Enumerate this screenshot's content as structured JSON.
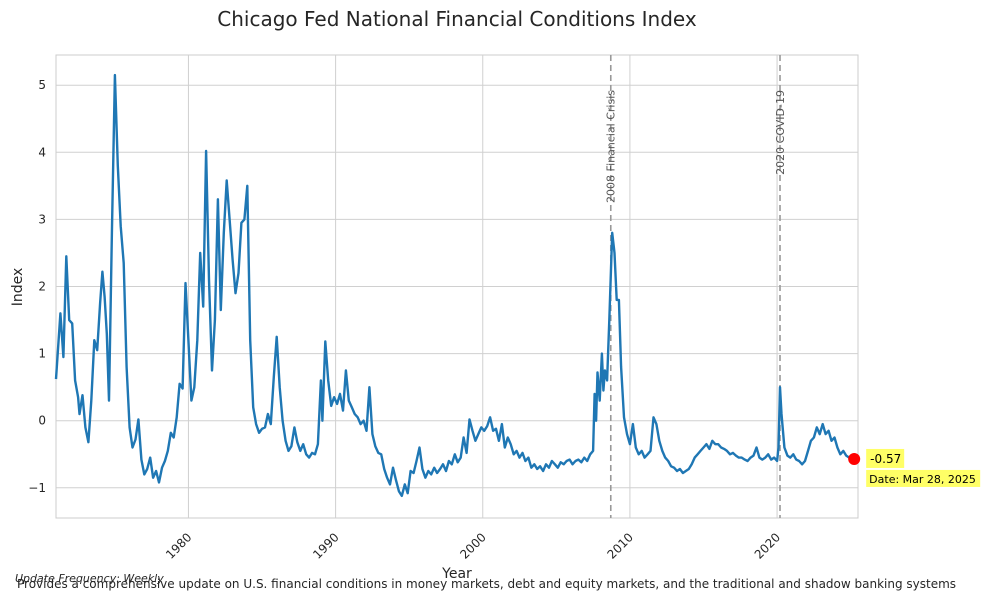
{
  "chart_data": {
    "type": "line",
    "title": "Chicago Fed National Financial Conditions Index",
    "xlabel": "Year",
    "ylabel": "Index",
    "xlim": [
      1971.0,
      2025.5
    ],
    "ylim": [
      -1.45,
      5.45
    ],
    "x_ticks": [
      1980,
      1990,
      2000,
      2010,
      2020
    ],
    "y_ticks": [
      -1,
      0,
      1,
      2,
      3,
      4,
      5
    ],
    "y_tick_labels": [
      "−1",
      "0",
      "1",
      "2",
      "3",
      "4",
      "5"
    ],
    "grid": true,
    "line_color": "#1f77b4",
    "events": [
      {
        "x": 2008.7,
        "label": "2008 Financial Crisis"
      },
      {
        "x": 2020.2,
        "label": "2020 COVID-19"
      }
    ],
    "latest": {
      "x": 2025.24,
      "y": -0.57,
      "value_label": "-0.57",
      "date_label": "Date: Mar 28, 2025",
      "marker_color": "#ff0000",
      "box_color": "#ffff66"
    },
    "series": [
      {
        "points": [
          [
            1971.0,
            0.62
          ],
          [
            1971.3,
            1.6
          ],
          [
            1971.5,
            0.95
          ],
          [
            1971.7,
            2.45
          ],
          [
            1971.9,
            1.5
          ],
          [
            1972.1,
            1.45
          ],
          [
            1972.3,
            0.6
          ],
          [
            1972.5,
            0.35
          ],
          [
            1972.6,
            0.1
          ],
          [
            1972.8,
            0.38
          ],
          [
            1973.0,
            -0.1
          ],
          [
            1973.2,
            -0.32
          ],
          [
            1973.4,
            0.3
          ],
          [
            1973.6,
            1.2
          ],
          [
            1973.8,
            1.05
          ],
          [
            1974.0,
            1.75
          ],
          [
            1974.15,
            2.22
          ],
          [
            1974.3,
            1.85
          ],
          [
            1974.45,
            1.3
          ],
          [
            1974.6,
            0.3
          ],
          [
            1974.8,
            2.8
          ],
          [
            1975.0,
            5.15
          ],
          [
            1975.2,
            3.8
          ],
          [
            1975.4,
            2.9
          ],
          [
            1975.6,
            2.35
          ],
          [
            1975.8,
            0.8
          ],
          [
            1976.0,
            -0.1
          ],
          [
            1976.2,
            -0.4
          ],
          [
            1976.4,
            -0.28
          ],
          [
            1976.6,
            0.02
          ],
          [
            1976.8,
            -0.58
          ],
          [
            1977.0,
            -0.8
          ],
          [
            1977.2,
            -0.72
          ],
          [
            1977.4,
            -0.55
          ],
          [
            1977.6,
            -0.85
          ],
          [
            1977.8,
            -0.75
          ],
          [
            1978.0,
            -0.92
          ],
          [
            1978.2,
            -0.7
          ],
          [
            1978.4,
            -0.6
          ],
          [
            1978.6,
            -0.45
          ],
          [
            1978.8,
            -0.18
          ],
          [
            1979.0,
            -0.25
          ],
          [
            1979.2,
            0.05
          ],
          [
            1979.4,
            0.55
          ],
          [
            1979.6,
            0.48
          ],
          [
            1979.8,
            2.05
          ],
          [
            1980.0,
            1.2
          ],
          [
            1980.2,
            0.3
          ],
          [
            1980.4,
            0.5
          ],
          [
            1980.6,
            1.2
          ],
          [
            1980.8,
            2.5
          ],
          [
            1981.0,
            1.7
          ],
          [
            1981.2,
            4.02
          ],
          [
            1981.4,
            2.1
          ],
          [
            1981.6,
            0.75
          ],
          [
            1981.8,
            1.5
          ],
          [
            1982.0,
            3.3
          ],
          [
            1982.2,
            1.65
          ],
          [
            1982.4,
            2.8
          ],
          [
            1982.6,
            3.58
          ],
          [
            1982.8,
            3.0
          ],
          [
            1983.0,
            2.4
          ],
          [
            1983.2,
            1.9
          ],
          [
            1983.4,
            2.2
          ],
          [
            1983.6,
            2.95
          ],
          [
            1983.8,
            3.0
          ],
          [
            1984.0,
            3.5
          ],
          [
            1984.2,
            1.2
          ],
          [
            1984.4,
            0.2
          ],
          [
            1984.6,
            -0.05
          ],
          [
            1984.8,
            -0.18
          ],
          [
            1985.0,
            -0.12
          ],
          [
            1985.2,
            -0.1
          ],
          [
            1985.4,
            0.1
          ],
          [
            1985.6,
            -0.05
          ],
          [
            1985.8,
            0.65
          ],
          [
            1986.0,
            1.25
          ],
          [
            1986.2,
            0.5
          ],
          [
            1986.4,
            0.0
          ],
          [
            1986.6,
            -0.3
          ],
          [
            1986.8,
            -0.45
          ],
          [
            1987.0,
            -0.38
          ],
          [
            1987.2,
            -0.1
          ],
          [
            1987.4,
            -0.32
          ],
          [
            1987.6,
            -0.45
          ],
          [
            1987.8,
            -0.35
          ],
          [
            1988.0,
            -0.5
          ],
          [
            1988.2,
            -0.55
          ],
          [
            1988.4,
            -0.48
          ],
          [
            1988.6,
            -0.5
          ],
          [
            1988.8,
            -0.35
          ],
          [
            1989.0,
            0.6
          ],
          [
            1989.1,
            0.0
          ],
          [
            1989.3,
            1.18
          ],
          [
            1989.5,
            0.6
          ],
          [
            1989.7,
            0.22
          ],
          [
            1989.9,
            0.35
          ],
          [
            1990.1,
            0.25
          ],
          [
            1990.3,
            0.4
          ],
          [
            1990.5,
            0.15
          ],
          [
            1990.7,
            0.75
          ],
          [
            1990.9,
            0.3
          ],
          [
            1991.1,
            0.2
          ],
          [
            1991.3,
            0.1
          ],
          [
            1991.5,
            0.05
          ],
          [
            1991.7,
            -0.05
          ],
          [
            1991.9,
            0.0
          ],
          [
            1992.1,
            -0.15
          ],
          [
            1992.3,
            0.5
          ],
          [
            1992.5,
            -0.2
          ],
          [
            1992.7,
            -0.38
          ],
          [
            1992.9,
            -0.48
          ],
          [
            1993.1,
            -0.5
          ],
          [
            1993.3,
            -0.72
          ],
          [
            1993.5,
            -0.85
          ],
          [
            1993.7,
            -0.95
          ],
          [
            1993.9,
            -0.7
          ],
          [
            1994.1,
            -0.88
          ],
          [
            1994.3,
            -1.05
          ],
          [
            1994.5,
            -1.12
          ],
          [
            1994.7,
            -0.95
          ],
          [
            1994.9,
            -1.08
          ],
          [
            1995.1,
            -0.75
          ],
          [
            1995.3,
            -0.78
          ],
          [
            1995.5,
            -0.6
          ],
          [
            1995.7,
            -0.4
          ],
          [
            1995.9,
            -0.72
          ],
          [
            1996.1,
            -0.85
          ],
          [
            1996.3,
            -0.75
          ],
          [
            1996.5,
            -0.8
          ],
          [
            1996.7,
            -0.7
          ],
          [
            1996.9,
            -0.78
          ],
          [
            1997.1,
            -0.72
          ],
          [
            1997.3,
            -0.65
          ],
          [
            1997.5,
            -0.75
          ],
          [
            1997.7,
            -0.6
          ],
          [
            1997.9,
            -0.65
          ],
          [
            1998.1,
            -0.5
          ],
          [
            1998.3,
            -0.62
          ],
          [
            1998.5,
            -0.55
          ],
          [
            1998.7,
            -0.25
          ],
          [
            1998.9,
            -0.48
          ],
          [
            1999.1,
            0.02
          ],
          [
            1999.3,
            -0.15
          ],
          [
            1999.5,
            -0.3
          ],
          [
            1999.7,
            -0.2
          ],
          [
            1999.9,
            -0.1
          ],
          [
            2000.1,
            -0.15
          ],
          [
            2000.3,
            -0.08
          ],
          [
            2000.5,
            0.05
          ],
          [
            2000.7,
            -0.15
          ],
          [
            2000.9,
            -0.12
          ],
          [
            2001.1,
            -0.3
          ],
          [
            2001.3,
            -0.05
          ],
          [
            2001.5,
            -0.4
          ],
          [
            2001.7,
            -0.25
          ],
          [
            2001.9,
            -0.35
          ],
          [
            2002.1,
            -0.5
          ],
          [
            2002.3,
            -0.45
          ],
          [
            2002.5,
            -0.55
          ],
          [
            2002.7,
            -0.48
          ],
          [
            2002.9,
            -0.6
          ],
          [
            2003.1,
            -0.55
          ],
          [
            2003.3,
            -0.7
          ],
          [
            2003.5,
            -0.65
          ],
          [
            2003.7,
            -0.72
          ],
          [
            2003.9,
            -0.68
          ],
          [
            2004.1,
            -0.75
          ],
          [
            2004.3,
            -0.65
          ],
          [
            2004.5,
            -0.7
          ],
          [
            2004.7,
            -0.6
          ],
          [
            2004.9,
            -0.65
          ],
          [
            2005.1,
            -0.7
          ],
          [
            2005.3,
            -0.62
          ],
          [
            2005.5,
            -0.65
          ],
          [
            2005.7,
            -0.6
          ],
          [
            2005.9,
            -0.58
          ],
          [
            2006.1,
            -0.65
          ],
          [
            2006.3,
            -0.6
          ],
          [
            2006.5,
            -0.58
          ],
          [
            2006.7,
            -0.62
          ],
          [
            2006.9,
            -0.55
          ],
          [
            2007.1,
            -0.6
          ],
          [
            2007.3,
            -0.5
          ],
          [
            2007.5,
            -0.45
          ],
          [
            2007.6,
            0.4
          ],
          [
            2007.7,
            0.0
          ],
          [
            2007.8,
            0.72
          ],
          [
            2007.95,
            0.3
          ],
          [
            2008.1,
            1.0
          ],
          [
            2008.2,
            0.45
          ],
          [
            2008.3,
            0.75
          ],
          [
            2008.45,
            0.6
          ],
          [
            2008.6,
            1.5
          ],
          [
            2008.8,
            2.8
          ],
          [
            2008.95,
            2.5
          ],
          [
            2009.1,
            1.8
          ],
          [
            2009.25,
            1.8
          ],
          [
            2009.4,
            0.8
          ],
          [
            2009.6,
            0.05
          ],
          [
            2009.8,
            -0.2
          ],
          [
            2010.0,
            -0.35
          ],
          [
            2010.2,
            -0.05
          ],
          [
            2010.4,
            -0.4
          ],
          [
            2010.6,
            -0.5
          ],
          [
            2010.8,
            -0.45
          ],
          [
            2011.0,
            -0.55
          ],
          [
            2011.2,
            -0.5
          ],
          [
            2011.4,
            -0.45
          ],
          [
            2011.6,
            0.05
          ],
          [
            2011.8,
            -0.05
          ],
          [
            2012.0,
            -0.3
          ],
          [
            2012.2,
            -0.45
          ],
          [
            2012.4,
            -0.55
          ],
          [
            2012.6,
            -0.6
          ],
          [
            2012.8,
            -0.68
          ],
          [
            2013.0,
            -0.7
          ],
          [
            2013.2,
            -0.75
          ],
          [
            2013.4,
            -0.72
          ],
          [
            2013.6,
            -0.78
          ],
          [
            2013.8,
            -0.75
          ],
          [
            2014.0,
            -0.72
          ],
          [
            2014.2,
            -0.65
          ],
          [
            2014.4,
            -0.55
          ],
          [
            2014.6,
            -0.5
          ],
          [
            2014.8,
            -0.45
          ],
          [
            2015.0,
            -0.4
          ],
          [
            2015.2,
            -0.35
          ],
          [
            2015.4,
            -0.42
          ],
          [
            2015.6,
            -0.3
          ],
          [
            2015.8,
            -0.35
          ],
          [
            2016.0,
            -0.35
          ],
          [
            2016.2,
            -0.4
          ],
          [
            2016.4,
            -0.42
          ],
          [
            2016.6,
            -0.45
          ],
          [
            2016.8,
            -0.5
          ],
          [
            2017.0,
            -0.48
          ],
          [
            2017.2,
            -0.52
          ],
          [
            2017.4,
            -0.55
          ],
          [
            2017.6,
            -0.55
          ],
          [
            2017.8,
            -0.58
          ],
          [
            2018.0,
            -0.6
          ],
          [
            2018.2,
            -0.55
          ],
          [
            2018.4,
            -0.52
          ],
          [
            2018.6,
            -0.4
          ],
          [
            2018.8,
            -0.55
          ],
          [
            2019.0,
            -0.58
          ],
          [
            2019.2,
            -0.55
          ],
          [
            2019.4,
            -0.5
          ],
          [
            2019.6,
            -0.58
          ],
          [
            2019.8,
            -0.55
          ],
          [
            2020.0,
            -0.6
          ],
          [
            2020.1,
            -0.4
          ],
          [
            2020.2,
            0.5
          ],
          [
            2020.3,
            0.1
          ],
          [
            2020.5,
            -0.4
          ],
          [
            2020.7,
            -0.52
          ],
          [
            2020.9,
            -0.55
          ],
          [
            2021.1,
            -0.5
          ],
          [
            2021.3,
            -0.58
          ],
          [
            2021.5,
            -0.6
          ],
          [
            2021.7,
            -0.65
          ],
          [
            2021.9,
            -0.6
          ],
          [
            2022.1,
            -0.45
          ],
          [
            2022.3,
            -0.3
          ],
          [
            2022.5,
            -0.25
          ],
          [
            2022.7,
            -0.1
          ],
          [
            2022.9,
            -0.2
          ],
          [
            2023.1,
            -0.05
          ],
          [
            2023.3,
            -0.2
          ],
          [
            2023.5,
            -0.15
          ],
          [
            2023.7,
            -0.3
          ],
          [
            2023.9,
            -0.25
          ],
          [
            2024.1,
            -0.4
          ],
          [
            2024.3,
            -0.5
          ],
          [
            2024.5,
            -0.45
          ],
          [
            2024.7,
            -0.52
          ],
          [
            2024.9,
            -0.55
          ],
          [
            2025.1,
            -0.56
          ],
          [
            2025.24,
            -0.57
          ]
        ]
      }
    ]
  },
  "footer": {
    "update_frequency": "Update Frequency: Weekly",
    "description": "Provides a comprehensive update on U.S. financial conditions in money markets, debt and equity markets, and the traditional and shadow banking systems"
  }
}
